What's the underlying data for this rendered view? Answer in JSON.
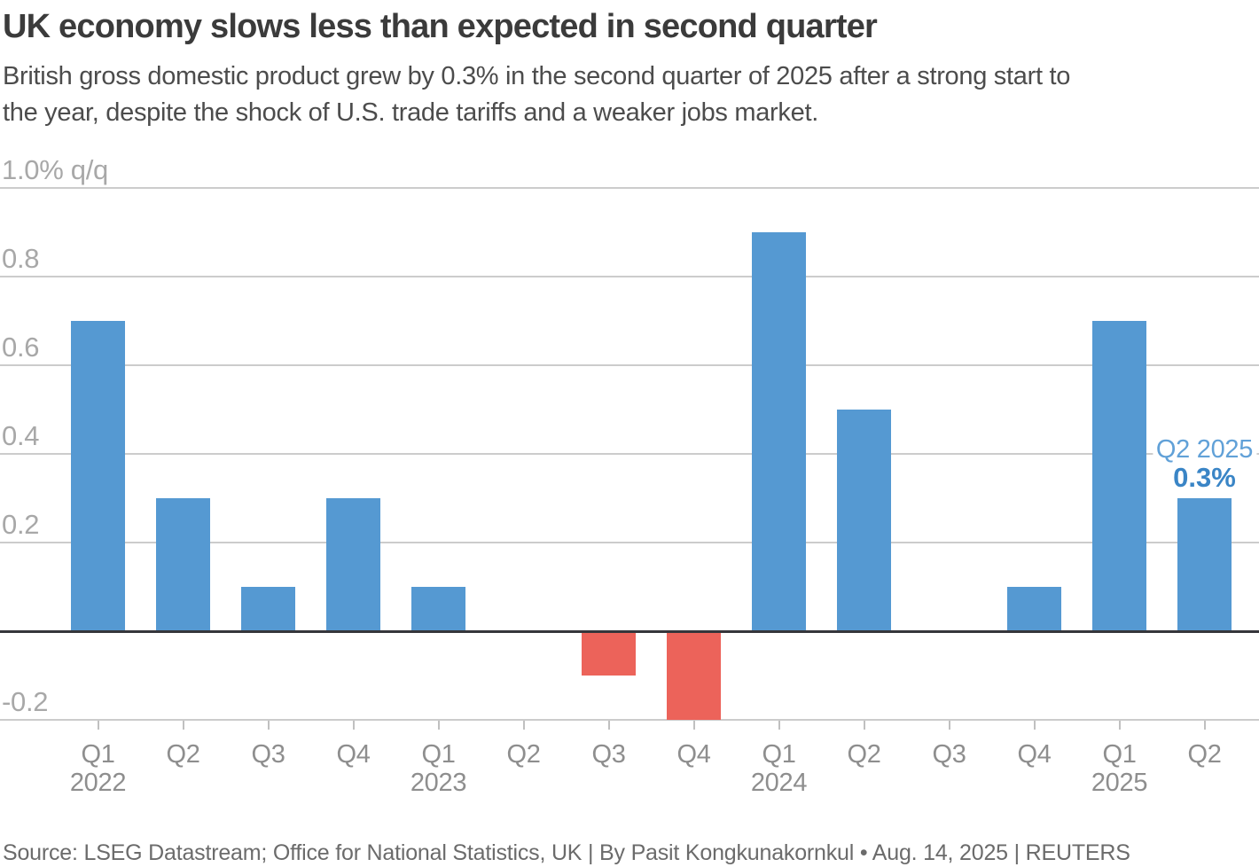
{
  "header": {
    "title": "UK economy slows less than expected in second quarter",
    "subtitle_lines": [
      "British gross domestic product grew by 0.3% in the second quarter of 2025 after a strong start to",
      "the year, despite the shock of U.S. trade tariffs and a weaker jobs market."
    ]
  },
  "chart_data": {
    "type": "bar",
    "title": "UK economy slows less than expected in second quarter",
    "categories": [
      "Q1 2022",
      "Q2 2022",
      "Q3 2022",
      "Q4 2022",
      "Q1 2023",
      "Q2 2023",
      "Q3 2023",
      "Q4 2023",
      "Q1 2024",
      "Q2 2024",
      "Q3 2024",
      "Q4 2024",
      "Q1 2025",
      "Q2 2025"
    ],
    "values": [
      0.7,
      0.3,
      0.1,
      0.3,
      0.1,
      0.0,
      -0.1,
      -0.2,
      0.9,
      0.5,
      0.0,
      0.1,
      0.7,
      0.3
    ],
    "ylabel": "% q/q",
    "ylim": [
      -0.28,
      1.06
    ],
    "yticks": [
      1.0,
      0.8,
      0.6,
      0.4,
      0.2,
      -0.2
    ],
    "ytick_labels": [
      "1.0% q/q",
      "0.8",
      "0.6",
      "0.4",
      "0.2",
      "-0.2"
    ],
    "quarter_labels": [
      "Q1",
      "Q2",
      "Q3",
      "Q4",
      "Q1",
      "Q2",
      "Q3",
      "Q4",
      "Q1",
      "Q2",
      "Q3",
      "Q4",
      "Q1",
      "Q2"
    ],
    "year_labels": [
      {
        "index": 0,
        "text": "2022"
      },
      {
        "index": 4,
        "text": "2023"
      },
      {
        "index": 8,
        "text": "2024"
      },
      {
        "index": 12,
        "text": "2025"
      }
    ],
    "grid": true,
    "legend": "none",
    "annotation": {
      "label": "Q2 2025",
      "value": "0.3%",
      "category_index": 13
    },
    "colors": {
      "positive_bar": "#5599D2",
      "negative_bar": "#EC635A",
      "annotation_label": "#61A1D8",
      "annotation_value": "#3A85C6",
      "gridline": "#cccccc",
      "zero_line": "#35363b",
      "axis_text": "#a8a8a8",
      "category_text": "#8e8e8e"
    }
  },
  "footer": {
    "source": "Source: LSEG Datastream; Office for National Statistics, UK | By Pasit Kongkunakornkul • Aug. 14, 2025 | REUTERS"
  }
}
